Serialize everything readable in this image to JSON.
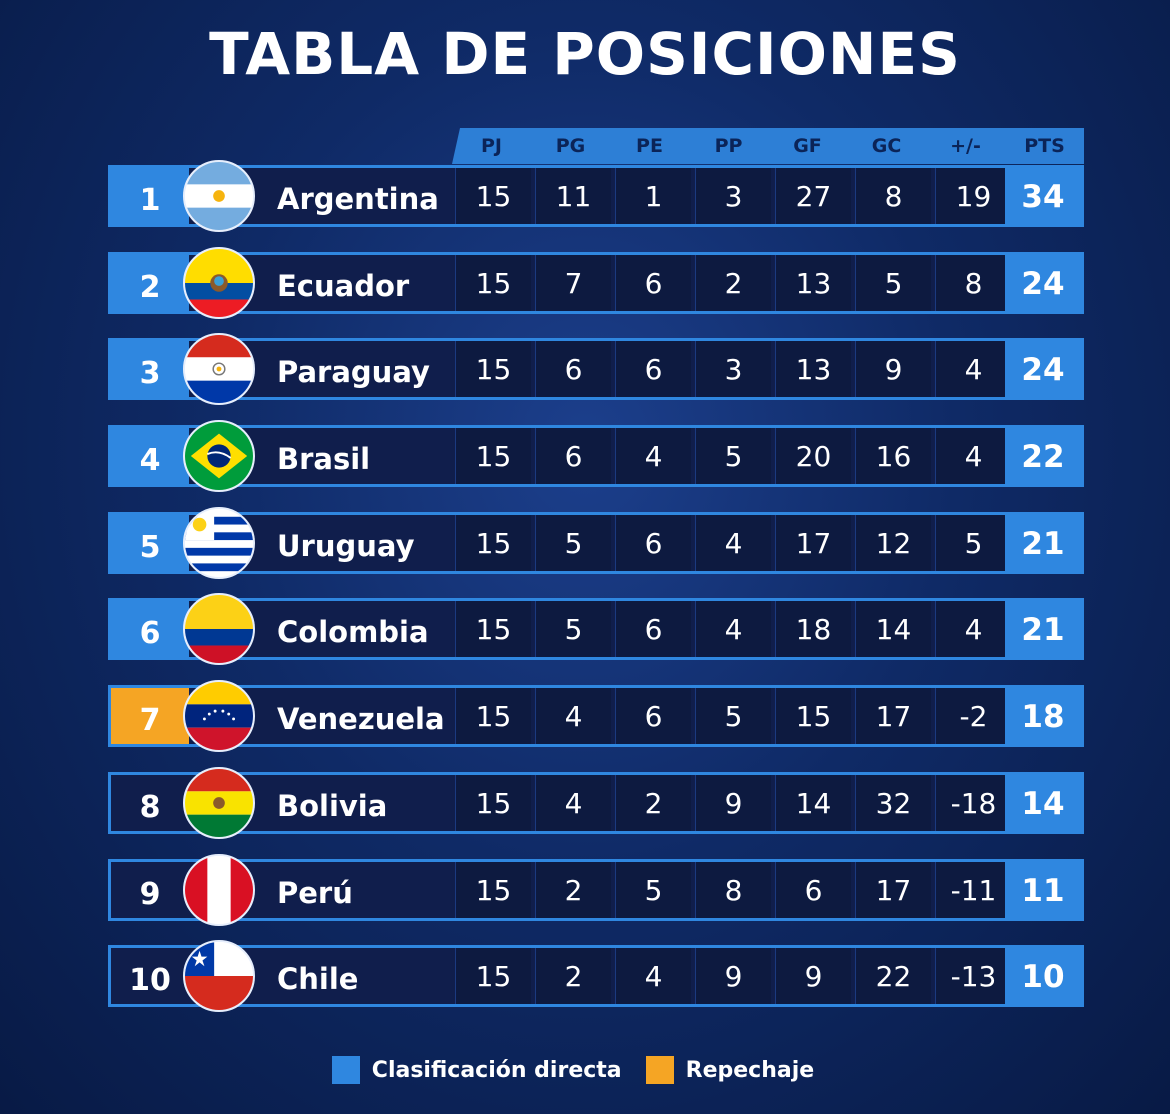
{
  "title": "TABLA DE POSICIONES",
  "columns": [
    "PJ",
    "PG",
    "PE",
    "PP",
    "GF",
    "GC",
    "+/-",
    "PTS"
  ],
  "rows": [
    {
      "pos": "1",
      "team": "Argentina",
      "status": "direct",
      "stats": [
        "15",
        "11",
        "1",
        "3",
        "27",
        "8",
        "19"
      ],
      "pts": "34"
    },
    {
      "pos": "2",
      "team": "Ecuador",
      "status": "direct",
      "stats": [
        "15",
        "7",
        "6",
        "2",
        "13",
        "5",
        "8"
      ],
      "pts": "24"
    },
    {
      "pos": "3",
      "team": "Paraguay",
      "status": "direct",
      "stats": [
        "15",
        "6",
        "6",
        "3",
        "13",
        "9",
        "4"
      ],
      "pts": "24"
    },
    {
      "pos": "4",
      "team": "Brasil",
      "status": "direct",
      "stats": [
        "15",
        "6",
        "4",
        "5",
        "20",
        "16",
        "4"
      ],
      "pts": "22"
    },
    {
      "pos": "5",
      "team": "Uruguay",
      "status": "direct",
      "stats": [
        "15",
        "5",
        "6",
        "4",
        "17",
        "12",
        "5"
      ],
      "pts": "21"
    },
    {
      "pos": "6",
      "team": "Colombia",
      "status": "direct",
      "stats": [
        "15",
        "5",
        "6",
        "4",
        "18",
        "14",
        "4"
      ],
      "pts": "21"
    },
    {
      "pos": "7",
      "team": "Venezuela",
      "status": "repechaje",
      "stats": [
        "15",
        "4",
        "6",
        "5",
        "15",
        "17",
        "-2"
      ],
      "pts": "18"
    },
    {
      "pos": "8",
      "team": "Bolivia",
      "status": "none",
      "stats": [
        "15",
        "4",
        "2",
        "9",
        "14",
        "32",
        "-18"
      ],
      "pts": "14"
    },
    {
      "pos": "9",
      "team": "Perú",
      "status": "none",
      "stats": [
        "15",
        "2",
        "5",
        "8",
        "6",
        "17",
        "-11"
      ],
      "pts": "11"
    },
    {
      "pos": "10",
      "team": "Chile",
      "status": "none",
      "stats": [
        "15",
        "2",
        "4",
        "9",
        "9",
        "22",
        "-13"
      ],
      "pts": "10"
    }
  ],
  "legend": {
    "direct_label": "Clasificación directa",
    "repechaje_label": "Repechaje",
    "direct_color": "#2f87e0",
    "repechaje_color": "#f5a524"
  },
  "flags": {
    "Argentina": "argentina-flag-icon",
    "Ecuador": "ecuador-flag-icon",
    "Paraguay": "paraguay-flag-icon",
    "Brasil": "brazil-flag-icon",
    "Uruguay": "uruguay-flag-icon",
    "Colombia": "colombia-flag-icon",
    "Venezuela": "venezuela-flag-icon",
    "Bolivia": "bolivia-flag-icon",
    "Perú": "peru-flag-icon",
    "Chile": "chile-flag-icon"
  }
}
